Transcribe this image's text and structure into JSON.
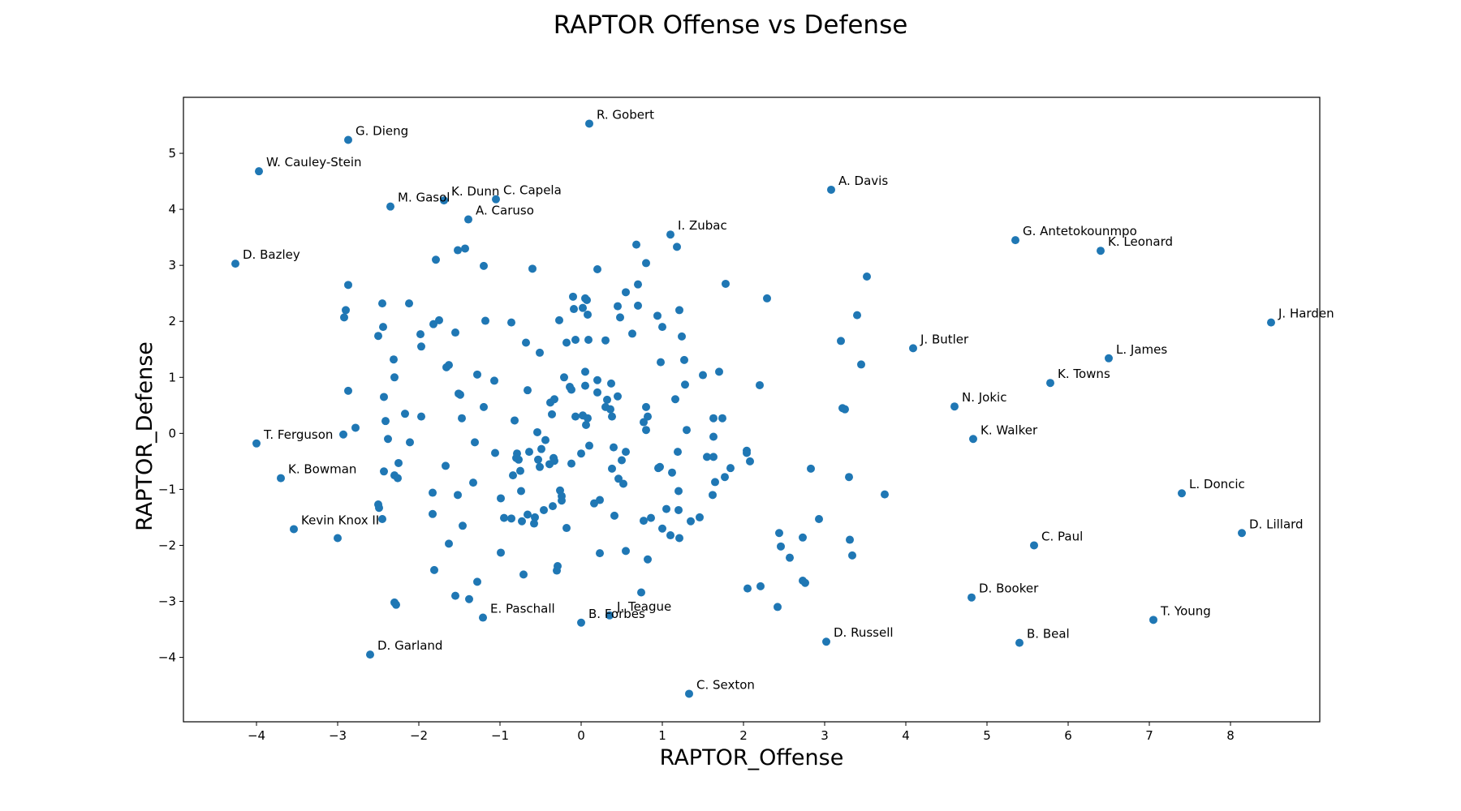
{
  "chart_data": {
    "type": "scatter",
    "title": "RAPTOR Offense vs Defense",
    "xlabel": "RAPTOR_Offense",
    "ylabel": "RAPTOR_Defense",
    "xlim": [
      -4.9,
      9.1
    ],
    "ylim": [
      -5.15,
      6.0
    ],
    "xticks": [
      -4,
      -3,
      -2,
      -1,
      0,
      1,
      2,
      3,
      4,
      5,
      6,
      7,
      8
    ],
    "yticks": [
      -4,
      -3,
      -2,
      -1,
      0,
      1,
      2,
      3,
      4,
      5
    ],
    "grid": false,
    "color": "#1f77b4",
    "labeled_points": [
      {
        "name": "R. Gobert",
        "x": 0.1,
        "y": 5.53
      },
      {
        "name": "G. Dieng",
        "x": -2.87,
        "y": 5.24
      },
      {
        "name": "W. Cauley-Stein",
        "x": -3.97,
        "y": 4.68
      },
      {
        "name": "A. Davis",
        "x": 3.08,
        "y": 4.35
      },
      {
        "name": "K. Dunn",
        "x": -1.69,
        "y": 4.16
      },
      {
        "name": "C. Capela",
        "x": -1.05,
        "y": 4.18
      },
      {
        "name": "M. Gasol",
        "x": -2.35,
        "y": 4.05
      },
      {
        "name": "A. Caruso",
        "x": -1.39,
        "y": 3.82
      },
      {
        "name": "I. Zubac",
        "x": 1.1,
        "y": 3.55
      },
      {
        "name": "G. Antetokounmpo",
        "x": 5.35,
        "y": 3.45
      },
      {
        "name": "K. Leonard",
        "x": 6.4,
        "y": 3.26
      },
      {
        "name": "D. Bazley",
        "x": -4.26,
        "y": 3.03
      },
      {
        "name": "J. Harden",
        "x": 8.5,
        "y": 1.98
      },
      {
        "name": "J. Butler",
        "x": 4.09,
        "y": 1.52
      },
      {
        "name": "L. James",
        "x": 6.5,
        "y": 1.34
      },
      {
        "name": "K. Towns",
        "x": 5.78,
        "y": 0.9
      },
      {
        "name": "N. Jokic",
        "x": 4.6,
        "y": 0.48
      },
      {
        "name": "K. Walker",
        "x": 4.83,
        "y": -0.1
      },
      {
        "name": "T. Ferguson",
        "x": -4.0,
        "y": -0.18
      },
      {
        "name": "K. Bowman",
        "x": -3.7,
        "y": -0.8
      },
      {
        "name": "L. Doncic",
        "x": 7.4,
        "y": -1.07
      },
      {
        "name": "Kevin Knox II",
        "x": -3.54,
        "y": -1.71
      },
      {
        "name": "D. Lillard",
        "x": 8.14,
        "y": -1.78
      },
      {
        "name": "C. Paul",
        "x": 5.58,
        "y": -2.0
      },
      {
        "name": "D. Booker",
        "x": 4.81,
        "y": -2.93
      },
      {
        "name": "E. Paschall",
        "x": -1.21,
        "y": -3.29
      },
      {
        "name": "J. Teague",
        "x": 0.35,
        "y": -3.25
      },
      {
        "name": "B. Forbes",
        "x": 0.0,
        "y": -3.38
      },
      {
        "name": "T. Young",
        "x": 7.05,
        "y": -3.33
      },
      {
        "name": "D. Russell",
        "x": 3.02,
        "y": -3.72
      },
      {
        "name": "B. Beal",
        "x": 5.4,
        "y": -3.74
      },
      {
        "name": "D. Garland",
        "x": -2.6,
        "y": -3.95
      },
      {
        "name": "C. Sexton",
        "x": 1.33,
        "y": -4.65
      }
    ],
    "unlabeled_points": [
      [
        -2.87,
        2.65
      ],
      [
        -2.9,
        2.2
      ],
      [
        -2.92,
        2.07
      ],
      [
        -2.87,
        0.76
      ],
      [
        -2.93,
        -0.02
      ],
      [
        -2.78,
        0.1
      ],
      [
        -3.0,
        -1.87
      ],
      [
        -2.5,
        1.74
      ],
      [
        -2.45,
        2.32
      ],
      [
        -2.44,
        1.9
      ],
      [
        -2.43,
        0.65
      ],
      [
        -2.41,
        0.22
      ],
      [
        -2.38,
        -0.1
      ],
      [
        -2.43,
        -0.68
      ],
      [
        -2.3,
        -0.75
      ],
      [
        -2.26,
        -0.8
      ],
      [
        -2.25,
        -0.53
      ],
      [
        -2.5,
        -1.27
      ],
      [
        -2.49,
        -1.33
      ],
      [
        -2.45,
        -1.53
      ],
      [
        -2.3,
        1.0
      ],
      [
        -2.31,
        1.32
      ],
      [
        -2.3,
        -3.02
      ],
      [
        -2.28,
        -3.06
      ],
      [
        -2.12,
        2.32
      ],
      [
        -2.17,
        0.35
      ],
      [
        -2.11,
        -0.16
      ],
      [
        -1.98,
        1.77
      ],
      [
        -1.97,
        1.55
      ],
      [
        -1.97,
        0.3
      ],
      [
        -1.82,
        1.95
      ],
      [
        -1.79,
        3.1
      ],
      [
        -1.75,
        2.02
      ],
      [
        -1.66,
        1.18
      ],
      [
        -1.63,
        1.22
      ],
      [
        -1.55,
        1.8
      ],
      [
        -1.52,
        3.27
      ],
      [
        -1.43,
        3.3
      ],
      [
        -1.67,
        -0.58
      ],
      [
        -1.52,
        -1.1
      ],
      [
        -1.51,
        0.71
      ],
      [
        -1.49,
        0.69
      ],
      [
        -1.47,
        0.27
      ],
      [
        -1.83,
        -1.06
      ],
      [
        -1.83,
        -1.44
      ],
      [
        -1.81,
        -2.44
      ],
      [
        -1.63,
        -1.97
      ],
      [
        -1.46,
        -1.65
      ],
      [
        -1.55,
        -2.9
      ],
      [
        -1.38,
        -2.96
      ],
      [
        -1.28,
        1.05
      ],
      [
        -1.2,
        2.99
      ],
      [
        -1.18,
        2.01
      ],
      [
        -1.2,
        0.47
      ],
      [
        -1.07,
        0.94
      ],
      [
        -1.31,
        -0.16
      ],
      [
        -1.06,
        -0.35
      ],
      [
        -1.33,
        -0.88
      ],
      [
        -1.28,
        -2.65
      ],
      [
        -0.99,
        -1.16
      ],
      [
        -0.95,
        -1.51
      ],
      [
        -0.99,
        -2.13
      ],
      [
        -0.86,
        1.98
      ],
      [
        -0.82,
        0.23
      ],
      [
        -0.84,
        -0.75
      ],
      [
        -0.86,
        -1.52
      ],
      [
        -0.73,
        -1.57
      ],
      [
        -0.79,
        -0.36
      ],
      [
        -0.8,
        -0.44
      ],
      [
        -0.77,
        -0.47
      ],
      [
        -0.75,
        -0.67
      ],
      [
        -0.74,
        -1.03
      ],
      [
        -0.68,
        1.62
      ],
      [
        -0.66,
        0.77
      ],
      [
        -0.64,
        -0.33
      ],
      [
        -0.66,
        -1.45
      ],
      [
        -0.71,
        -2.52
      ],
      [
        -0.6,
        2.94
      ],
      [
        -0.57,
        -1.5
      ],
      [
        -0.58,
        -1.61
      ],
      [
        -0.54,
        0.02
      ],
      [
        -0.53,
        -0.47
      ],
      [
        -0.51,
        -0.6
      ],
      [
        -0.49,
        -0.28
      ],
      [
        -0.46,
        -1.37
      ],
      [
        -0.51,
        1.44
      ],
      [
        -0.44,
        -0.12
      ],
      [
        -0.39,
        -0.55
      ],
      [
        -0.38,
        0.55
      ],
      [
        -0.36,
        0.34
      ],
      [
        -0.34,
        -0.44
      ],
      [
        -0.33,
        -0.49
      ],
      [
        -0.33,
        0.61
      ],
      [
        -0.35,
        -1.3
      ],
      [
        -0.3,
        -2.45
      ],
      [
        -0.29,
        -2.37
      ],
      [
        -0.27,
        2.02
      ],
      [
        -0.26,
        -1.02
      ],
      [
        -0.24,
        -1.12
      ],
      [
        -0.24,
        -1.2
      ],
      [
        -0.21,
        1.0
      ],
      [
        -0.18,
        1.62
      ],
      [
        -0.18,
        -1.69
      ],
      [
        -0.14,
        0.83
      ],
      [
        -0.12,
        0.78
      ],
      [
        -0.12,
        -0.54
      ],
      [
        -0.1,
        2.44
      ],
      [
        -0.09,
        2.22
      ],
      [
        -0.07,
        1.67
      ],
      [
        -0.07,
        0.3
      ],
      [
        0.0,
        -0.36
      ],
      [
        0.02,
        0.32
      ],
      [
        0.02,
        2.24
      ],
      [
        0.05,
        2.41
      ],
      [
        0.05,
        1.1
      ],
      [
        0.05,
        0.85
      ],
      [
        0.06,
        0.15
      ],
      [
        0.07,
        2.38
      ],
      [
        0.08,
        2.12
      ],
      [
        0.08,
        0.27
      ],
      [
        0.09,
        1.67
      ],
      [
        0.1,
        -0.22
      ],
      [
        0.16,
        -1.25
      ],
      [
        0.2,
        0.95
      ],
      [
        0.2,
        0.73
      ],
      [
        0.2,
        2.93
      ],
      [
        0.23,
        -1.19
      ],
      [
        0.23,
        -2.14
      ],
      [
        0.3,
        1.66
      ],
      [
        0.3,
        0.47
      ],
      [
        0.32,
        0.6
      ],
      [
        0.36,
        0.43
      ],
      [
        0.37,
        0.89
      ],
      [
        0.38,
        -0.63
      ],
      [
        0.38,
        0.3
      ],
      [
        0.4,
        -0.25
      ],
      [
        0.41,
        -1.47
      ],
      [
        0.45,
        2.27
      ],
      [
        0.45,
        0.66
      ],
      [
        0.46,
        -0.81
      ],
      [
        0.48,
        2.07
      ],
      [
        0.5,
        -0.48
      ],
      [
        0.52,
        -0.9
      ],
      [
        0.55,
        -0.33
      ],
      [
        0.55,
        2.52
      ],
      [
        0.55,
        -2.1
      ],
      [
        0.63,
        1.78
      ],
      [
        0.68,
        3.37
      ],
      [
        0.7,
        2.28
      ],
      [
        0.7,
        2.66
      ],
      [
        0.74,
        -2.84
      ],
      [
        0.77,
        -1.56
      ],
      [
        0.77,
        0.2
      ],
      [
        0.8,
        3.04
      ],
      [
        0.8,
        0.47
      ],
      [
        0.8,
        0.06
      ],
      [
        0.82,
        0.3
      ],
      [
        0.82,
        -2.25
      ],
      [
        0.86,
        -1.51
      ],
      [
        0.94,
        2.1
      ],
      [
        0.95,
        -0.62
      ],
      [
        0.97,
        -0.6
      ],
      [
        0.98,
        1.27
      ],
      [
        1.0,
        1.9
      ],
      [
        1.0,
        -1.7
      ],
      [
        1.05,
        -1.35
      ],
      [
        1.1,
        -1.82
      ],
      [
        1.12,
        -0.7
      ],
      [
        1.16,
        0.61
      ],
      [
        1.18,
        3.33
      ],
      [
        1.19,
        -0.33
      ],
      [
        1.2,
        -1.03
      ],
      [
        1.2,
        -1.37
      ],
      [
        1.21,
        2.2
      ],
      [
        1.21,
        -1.87
      ],
      [
        1.24,
        1.73
      ],
      [
        1.27,
        1.31
      ],
      [
        1.28,
        0.87
      ],
      [
        1.3,
        0.06
      ],
      [
        1.35,
        -1.57
      ],
      [
        1.46,
        -1.5
      ],
      [
        1.5,
        1.04
      ],
      [
        1.55,
        -0.42
      ],
      [
        1.62,
        -1.1
      ],
      [
        1.63,
        -0.06
      ],
      [
        1.63,
        0.27
      ],
      [
        1.63,
        -0.42
      ],
      [
        1.65,
        -0.87
      ],
      [
        1.7,
        1.1
      ],
      [
        1.74,
        0.27
      ],
      [
        1.77,
        -0.78
      ],
      [
        1.78,
        2.67
      ],
      [
        1.84,
        -0.62
      ],
      [
        2.04,
        -0.31
      ],
      [
        2.04,
        -0.35
      ],
      [
        2.05,
        -2.77
      ],
      [
        2.08,
        -0.5
      ],
      [
        2.2,
        0.86
      ],
      [
        2.21,
        -2.73
      ],
      [
        2.29,
        2.41
      ],
      [
        2.42,
        -3.1
      ],
      [
        2.44,
        -1.78
      ],
      [
        2.46,
        -2.02
      ],
      [
        2.57,
        -2.22
      ],
      [
        2.73,
        -2.63
      ],
      [
        2.73,
        -1.86
      ],
      [
        2.76,
        -2.67
      ],
      [
        2.83,
        -0.63
      ],
      [
        2.93,
        -1.53
      ],
      [
        3.2,
        1.65
      ],
      [
        3.22,
        0.45
      ],
      [
        3.25,
        0.43
      ],
      [
        3.3,
        -0.78
      ],
      [
        3.31,
        -1.9
      ],
      [
        3.34,
        -2.18
      ],
      [
        3.4,
        2.11
      ],
      [
        3.45,
        1.23
      ],
      [
        3.52,
        2.8
      ],
      [
        3.74,
        -1.09
      ]
    ]
  }
}
